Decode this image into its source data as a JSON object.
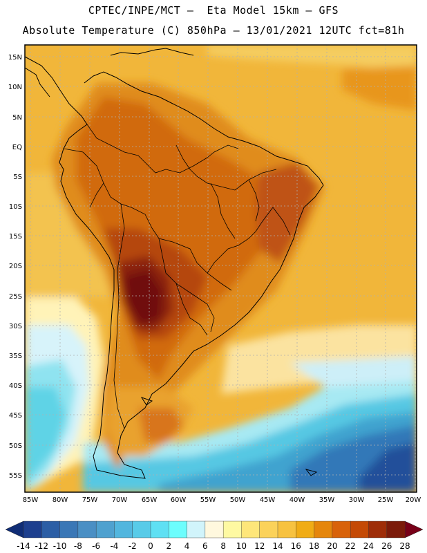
{
  "header": {
    "line1": "CPTEC/INPE/MCT –  Eta Model 15km – GFS",
    "line2": "Absolute Temperature (C) 850hPa – 13/01/2021 12UTC fct=81h"
  },
  "map": {
    "lat_labels": [
      "15N",
      "10N",
      "5N",
      "EQ",
      "5S",
      "10S",
      "15S",
      "20S",
      "25S",
      "30S",
      "35S",
      "40S",
      "45S",
      "50S",
      "55S"
    ],
    "lon_labels": [
      "85W",
      "80W",
      "75W",
      "70W",
      "65W",
      "60W",
      "55W",
      "50W",
      "45W",
      "40W",
      "35W",
      "30W",
      "25W",
      "20W"
    ]
  },
  "colorbar": {
    "ticks": [
      "-14",
      "-12",
      "-10",
      "-8",
      "-6",
      "-4",
      "-2",
      "0",
      "2",
      "4",
      "6",
      "8",
      "10",
      "12",
      "14",
      "16",
      "18",
      "20",
      "22",
      "24",
      "26",
      "28"
    ],
    "colors": [
      "#1d3f8e",
      "#2c5ea5",
      "#3a77b6",
      "#4a8fc4",
      "#4fa1cf",
      "#52b6de",
      "#58cbe8",
      "#5fe0f3",
      "#6cfdfd",
      "#d1f4fb",
      "#fff8de",
      "#fef9a2",
      "#fee67a",
      "#fbd25a",
      "#f7c240",
      "#f0ac16",
      "#e5860c",
      "#d8620a",
      "#c44a06",
      "#9e2d08",
      "#7b1b0a"
    ],
    "under_color": "#102d76",
    "over_color": "#780018"
  }
}
